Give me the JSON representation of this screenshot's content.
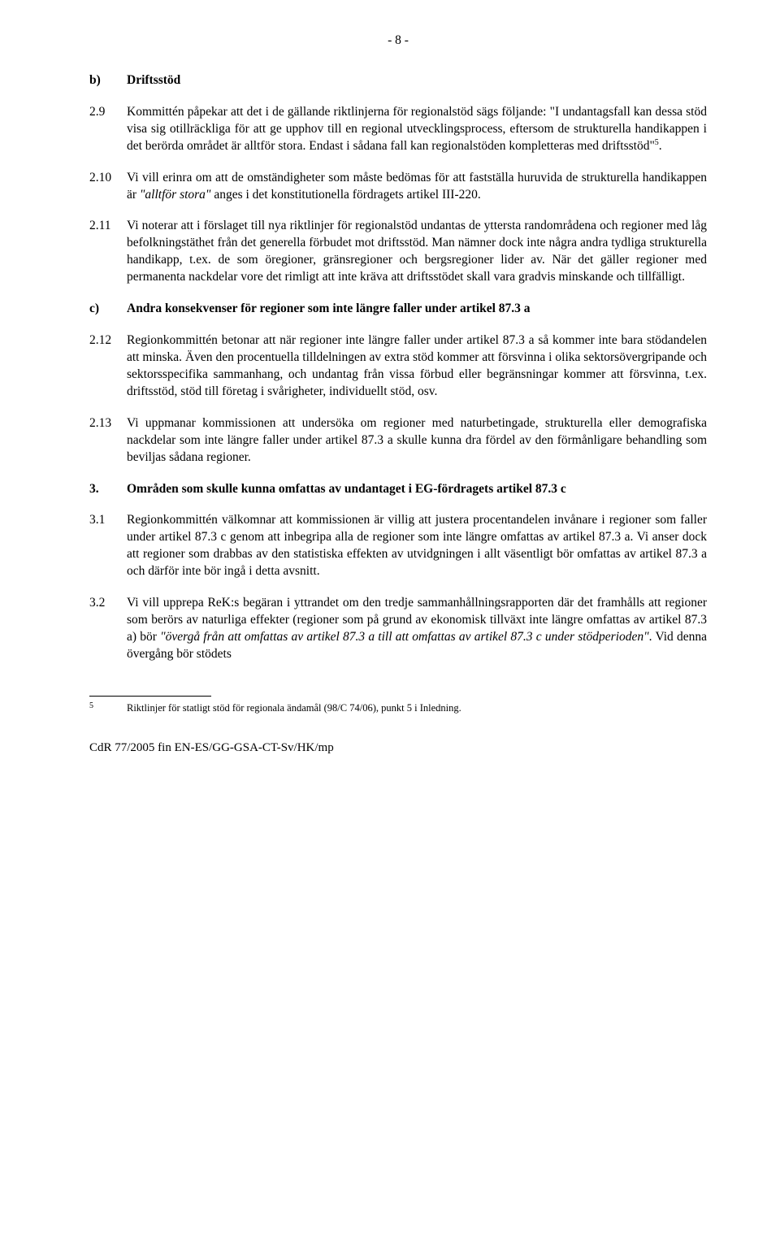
{
  "page_number": "- 8 -",
  "rows": [
    {
      "marker": "b)",
      "marker_bold": true,
      "heading": true,
      "html": "<b>Driftsstöd</b>"
    },
    {
      "marker": "2.9",
      "html": "Kommittén påpekar att det i de gällande riktlinjerna för regionalstöd sägs följande: &quot;I undantagsfall kan dessa stöd visa sig otillräckliga för att ge upphov till en regional utvecklingsprocess, eftersom de strukturella handikappen i det berörda området är alltför stora. Endast i sådana fall kan regionalstöden kompletteras med driftsstöd&quot;<span class=\"sup\">5</span>."
    },
    {
      "marker": "2.10",
      "html": "Vi vill erinra om att de omständigheter som måste bedömas för att fastställa huruvida de strukturella handikappen är <span class=\"italic\">&quot;alltför stora&quot;</span> anges i det konstitutionella fördragets artikel III-220."
    },
    {
      "marker": "2.11",
      "html": "Vi noterar att i förslaget till nya riktlinjer för regionalstöd undantas de yttersta randområdena och regioner med låg befolkningstäthet från det generella förbudet mot driftsstöd. Man nämner dock inte några andra tydliga strukturella handikapp, t.ex. de som öregioner, gränsregioner och bergsregioner lider av. När det gäller regioner med permanenta nackdelar vore det rimligt att inte kräva att driftsstödet skall vara gradvis minskande och tillfälligt."
    },
    {
      "marker": "c)",
      "marker_bold": true,
      "heading": true,
      "html": "<b>Andra konsekvenser för regioner som inte längre faller under artikel 87.3 a</b>"
    },
    {
      "marker": "2.12",
      "html": "Regionkommittén betonar att när regioner inte längre faller under artikel 87.3 a så kommer inte bara stödandelen att minska. Även den procentuella tilldelningen av extra stöd kommer att försvinna i olika sektorsövergripande och sektorsspecifika sammanhang, och undantag från vissa förbud eller begränsningar kommer att försvinna, t.ex. driftsstöd, stöd till företag i svårigheter, individuellt stöd, osv."
    },
    {
      "marker": "2.13",
      "html": "Vi uppmanar kommissionen att undersöka om regioner med naturbetingade, strukturella eller demografiska nackdelar som inte längre faller under artikel 87.3 a skulle kunna dra fördel av den förmånligare behandling som beviljas sådana regioner."
    },
    {
      "marker": "3.",
      "marker_bold": true,
      "heading": true,
      "html": "<b>Områden som skulle kunna omfattas av undantaget i EG-fördragets artikel 87.3 c</b>"
    },
    {
      "marker": "3.1",
      "html": "Regionkommittén välkomnar att kommissionen är villig att justera procentandelen invånare i regioner som faller under artikel 87.3 c genom att inbegripa alla de regioner som inte längre omfattas av artikel 87.3 a. Vi anser dock att regioner som drabbas av den statistiska effekten av utvidgningen i allt väsentligt bör omfattas av artikel 87.3 a och därför inte bör ingå i detta avsnitt."
    },
    {
      "marker": "3.2",
      "html": "Vi vill upprepa ReK:s begäran i yttrandet om den tredje sammanhållningsrapporten där det framhålls att regioner som berörs av naturliga effekter (regioner som på grund av ekonomisk tillväxt inte längre omfattas av artikel 87.3 a) bör <span class=\"italic\">&quot;övergå från att omfattas av artikel 87.3 a till att omfattas av artikel 87.3 c under stödperioden&quot;</span>. Vid denna övergång bör stödets"
    }
  ],
  "footnote": {
    "marker": "5",
    "text": "Riktlinjer för statligt stöd för regionala ändamål (98/C 74/06), punkt 5 i Inledning."
  },
  "footer": "CdR 77/2005 fin  EN-ES/GG-GSA-CT-Sv/HK/mp"
}
